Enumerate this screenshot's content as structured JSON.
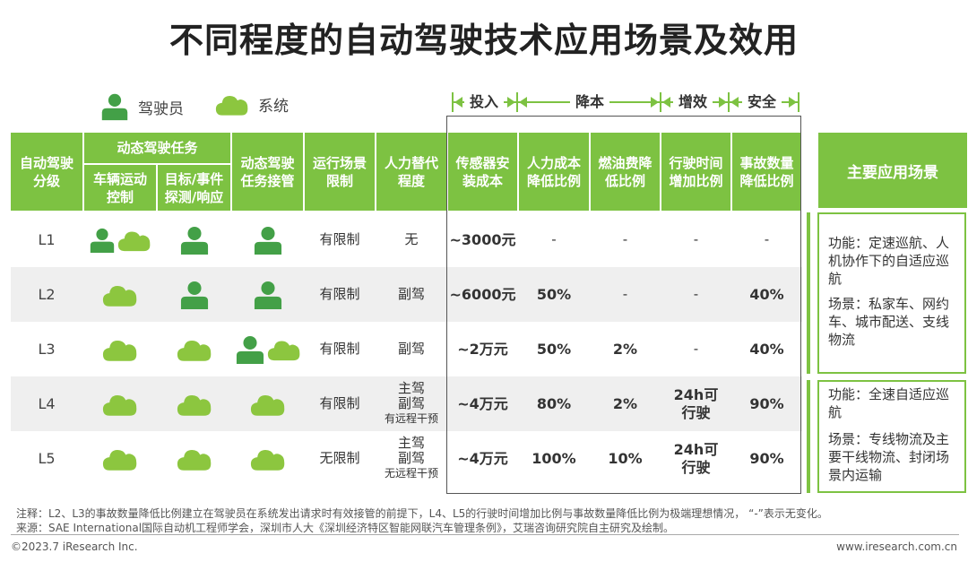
{
  "title": "不同程度的自动驾驶技术应用场景及效用",
  "legend": {
    "driver": "驾驶员",
    "system": "系统"
  },
  "categories": {
    "invest": "投入",
    "cost": "降本",
    "efficiency": "增效",
    "safety": "安全"
  },
  "headers": {
    "level": "自动驾驶分级",
    "ddt": "动态驾驶任务",
    "motion": "车辆运动控制",
    "oedr": "目标/事件探测/响应",
    "fallback": "动态驾驶任务接管",
    "odd": "运行场景限制",
    "replace": "人力替代程度",
    "sensor": "传感器安装成本",
    "labor": "人力成本降低比例",
    "fuel": "燃油费降低比例",
    "time": "行驶时间增加比例",
    "accident": "事故数量降低比例",
    "main": "主要应用场景"
  },
  "rows": [
    {
      "level": "L1",
      "odd": "有限制",
      "replace": [
        "无"
      ],
      "sensor": "~3000元",
      "labor": "-",
      "fuel": "-",
      "time": "-",
      "accident": "-"
    },
    {
      "level": "L2",
      "odd": "有限制",
      "replace": [
        "副驾"
      ],
      "sensor": "~6000元",
      "labor": "50%",
      "fuel": "-",
      "time": "-",
      "accident": "40%"
    },
    {
      "level": "L3",
      "odd": "有限制",
      "replace": [
        "副驾"
      ],
      "sensor": "~2万元",
      "labor": "50%",
      "fuel": "2%",
      "time": "-",
      "accident": "40%"
    },
    {
      "level": "L4",
      "odd": "有限制",
      "replace": [
        "主驾",
        "副驾",
        "有远程干预"
      ],
      "sensor": "~4万元",
      "labor": "80%",
      "fuel": "2%",
      "time": "24h可行驶",
      "accident": "90%"
    },
    {
      "level": "L5",
      "odd": "无限制",
      "replace": [
        "主驾",
        "副驾",
        "无远程干预"
      ],
      "sensor": "~4万元",
      "labor": "100%",
      "fuel": "10%",
      "time": "24h可行驶",
      "accident": "90%"
    }
  ],
  "panels": {
    "p1_func": "功能：定速巡航、人机协作下的自适应巡航",
    "p1_scene": "场景：私家车、网约车、城市配送、支线物流",
    "p2_func": "功能：全速自适应巡航",
    "p2_scene": "场景：专线物流及主要干线物流、封闭场景内运输"
  },
  "notes": {
    "note": "注释：L2、L3的事故数量降低比例建立在驾驶员在系统发出请求时有效接管的前提下，L4、L5的行驶时间增加比例与事故数量降低比例为极端理想情况， “-”表示无变化。",
    "source": "来源：SAE International国际自动机工程师学会，深圳市人大《深圳经济特区智能网联汽车管理条例》，艾瑞咨询研究院自主研究及绘制。"
  },
  "footer": {
    "copyright": "©2023.7 iResearch Inc.",
    "url": "www.iresearch.com.cn"
  },
  "colors": {
    "green": "#7dc242",
    "alt_row": "#efefef"
  }
}
